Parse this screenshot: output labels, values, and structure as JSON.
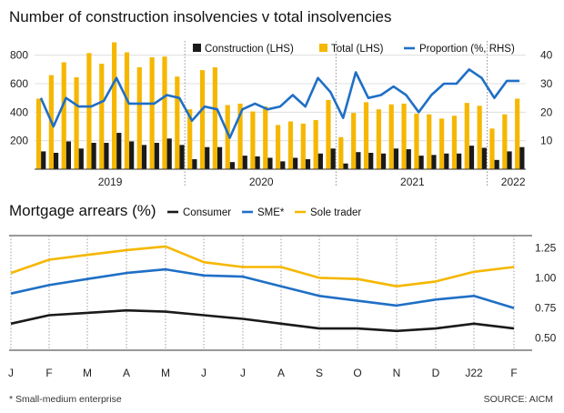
{
  "chart_data": [
    {
      "type": "bar+line",
      "title": "Number of construction insolvencies v total insolvencies",
      "legend": [
        "Construction (LHS)",
        "Total (LHS)",
        "Proportion (%, RHS)"
      ],
      "colors": {
        "construction": "#1a1a1a",
        "total": "#f5b700",
        "proportion": "#1f6fc6"
      },
      "left_axis": {
        "ticks": [
          200,
          400,
          600,
          800
        ],
        "range": [
          0,
          900
        ]
      },
      "right_axis": {
        "ticks": [
          10,
          20,
          30,
          40
        ],
        "range": [
          0,
          45
        ]
      },
      "year_labels": [
        "2019",
        "2020",
        "2021",
        "2022"
      ],
      "construction": [
        125,
        115,
        195,
        145,
        185,
        185,
        255,
        195,
        170,
        185,
        215,
        170,
        70,
        155,
        155,
        50,
        95,
        90,
        80,
        55,
        80,
        70,
        110,
        145,
        40,
        120,
        115,
        110,
        145,
        140,
        95,
        100,
        110,
        110,
        165,
        150,
        65,
        125,
        155
      ],
      "total": [
        495,
        660,
        750,
        645,
        815,
        740,
        890,
        820,
        715,
        785,
        790,
        650,
        420,
        695,
        715,
        450,
        460,
        405,
        440,
        310,
        335,
        320,
        345,
        485,
        225,
        395,
        470,
        420,
        455,
        460,
        390,
        385,
        355,
        375,
        465,
        445,
        285,
        385,
        495
      ],
      "proportion": [
        25,
        15,
        25,
        22,
        22,
        24,
        32,
        23,
        23,
        23,
        26,
        25,
        17,
        22,
        21,
        11,
        21,
        23,
        21,
        22,
        26,
        22,
        32,
        27,
        18,
        34,
        25,
        26,
        29,
        26,
        20,
        26,
        30,
        30,
        35,
        32,
        25,
        31,
        31
      ]
    },
    {
      "type": "line",
      "title": "Mortgage arrears (%)",
      "legend": [
        "Consumer",
        "SME*",
        "Sole trader"
      ],
      "colors": {
        "consumer": "#1a1a1a",
        "sme": "#1f6fc6",
        "sole": "#f5b700"
      },
      "categories": [
        "J",
        "F",
        "M",
        "A",
        "M",
        "J",
        "J",
        "A",
        "S",
        "O",
        "N",
        "D",
        "J22",
        "F"
      ],
      "y_ticks": [
        "1.25",
        "1.00",
        "0.75",
        "0.50"
      ],
      "y_tick_values": [
        1.25,
        1.0,
        0.75,
        0.5
      ],
      "ylim": [
        0.4,
        1.35
      ],
      "series": [
        {
          "name": "Consumer",
          "values": [
            0.62,
            0.69,
            0.71,
            0.73,
            0.72,
            0.69,
            0.66,
            0.62,
            0.58,
            0.58,
            0.56,
            0.58,
            0.62,
            0.58
          ]
        },
        {
          "name": "SME*",
          "values": [
            0.87,
            0.94,
            0.99,
            1.04,
            1.07,
            1.02,
            1.01,
            0.93,
            0.85,
            0.81,
            0.77,
            0.82,
            0.85,
            0.75
          ]
        },
        {
          "name": "Sole trader",
          "values": [
            1.04,
            1.15,
            1.19,
            1.23,
            1.26,
            1.13,
            1.09,
            1.09,
            1.0,
            0.99,
            0.93,
            0.97,
            1.05,
            1.09
          ]
        }
      ]
    }
  ],
  "footnote": "* Small-medium enterprise",
  "source": "SOURCE: AICM"
}
